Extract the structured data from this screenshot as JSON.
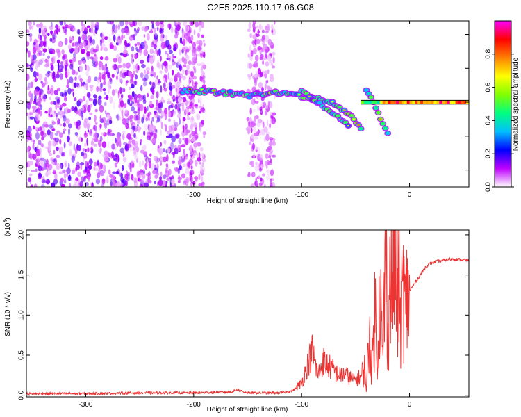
{
  "title": "C2E5.2025.110.17.06.G08",
  "colorbar": {
    "label": "Normalized spectral amplitude",
    "ticks": [
      "0.0",
      "0.2",
      "0.4",
      "0.6",
      "0.8"
    ],
    "range": [
      0,
      1
    ],
    "colors": [
      "#ffffff",
      "#c000ff",
      "#0000ff",
      "#00c0ff",
      "#00ff80",
      "#80ff00",
      "#ffff00",
      "#ff8000",
      "#ff0000",
      "#ff00ff"
    ]
  },
  "chart_data": [
    {
      "type": "heatmap",
      "xlabel": "Height of straight line (km)",
      "ylabel": "Frequency (Hz)",
      "xlim": [
        -355,
        55
      ],
      "ylim": [
        -50,
        48
      ],
      "xticks": [
        -300,
        -200,
        -100,
        0
      ],
      "yticks": [
        -40,
        -20,
        0,
        20,
        40
      ],
      "features": {
        "noise_region_km": [
          -355,
          -210
        ],
        "noise_bands_km": [
          [
            -210,
            -190
          ],
          [
            -150,
            -125
          ]
        ],
        "main_trace": [
          {
            "x": -210,
            "y": 7
          },
          {
            "x": -180,
            "y": 6
          },
          {
            "x": -150,
            "y": 4
          },
          {
            "x": -120,
            "y": 6
          },
          {
            "x": -105,
            "y": 4
          },
          {
            "x": -90,
            "y": 3
          },
          {
            "x": -75,
            "y": 1
          },
          {
            "x": -60,
            "y": -5
          },
          {
            "x": -45,
            "y": -15
          }
        ],
        "secondary_trace": [
          {
            "x": -100,
            "y": 6
          },
          {
            "x": -85,
            "y": 0
          },
          {
            "x": -70,
            "y": -7
          },
          {
            "x": -55,
            "y": -14
          }
        ],
        "dc_line": [
          {
            "x": -45,
            "y": 0
          },
          {
            "x": 55,
            "y": 0
          }
        ],
        "branch": [
          {
            "x": -40,
            "y": 8
          },
          {
            "x": -30,
            "y": -5
          },
          {
            "x": -20,
            "y": -18
          }
        ]
      }
    },
    {
      "type": "line",
      "xlabel": "Height of straight line (km)",
      "ylabel": "SNR (10 * v/v)",
      "y_multiplier": "(x10",
      "y_multiplier_exp": "4",
      "y_multiplier_close": ")",
      "xlim": [
        -355,
        55
      ],
      "ylim": [
        -0.02,
        2.06
      ],
      "xticks": [
        -300,
        -200,
        -100,
        0
      ],
      "yticks": [
        0.0,
        0.5,
        1.0,
        1.5,
        2.0
      ],
      "ytick_labels": [
        "0.0",
        "0.5",
        "1.0",
        "1.5",
        "2.0"
      ],
      "color": "#ee3333",
      "series": [
        {
          "x": [
            -355,
            -300,
            -250,
            -200,
            -165,
            -160,
            -150,
            -120,
            -110,
            -100,
            -95,
            -90,
            -85,
            -80,
            -75,
            -70,
            -65,
            -60,
            -55,
            -50,
            -45,
            -42,
            -40,
            -37,
            -35,
            -32,
            -30,
            -27,
            -25,
            -22,
            -20,
            -18,
            -16,
            -14,
            -12,
            -10,
            -8,
            -6,
            -4,
            -2,
            0,
            5,
            10,
            15,
            20,
            30,
            40,
            55
          ],
          "y": [
            0.02,
            0.02,
            0.03,
            0.03,
            0.04,
            0.07,
            0.03,
            0.03,
            0.05,
            0.12,
            0.3,
            0.45,
            0.2,
            0.35,
            0.3,
            0.25,
            0.2,
            0.22,
            0.18,
            0.15,
            0.2,
            0.35,
            0.1,
            0.8,
            0.3,
            1.1,
            0.5,
            1.3,
            0.4,
            1.8,
            0.7,
            1.5,
            1.2,
            2.05,
            1.0,
            1.35,
            0.9,
            1.45,
            1.0,
            1.25,
            1.3,
            1.4,
            1.5,
            1.6,
            1.65,
            1.68,
            1.7,
            1.68
          ]
        }
      ]
    }
  ]
}
